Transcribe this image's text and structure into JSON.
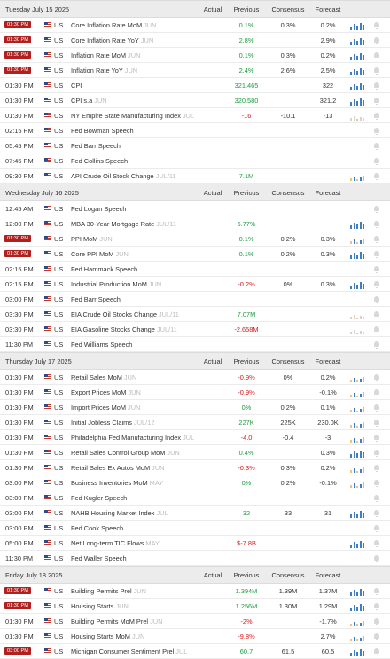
{
  "columns": {
    "actual": "Actual",
    "previous": "Previous",
    "consensus": "Consensus",
    "forecast": "Forecast"
  },
  "days": [
    {
      "date": "Tuesday July 15 2025",
      "rows": [
        {
          "time": "01:30 PM",
          "hi": true,
          "country": "US",
          "event": "Core Inflation Rate MoM",
          "period": "JUN",
          "actual": "",
          "previous": "0.1%",
          "prev_color": "up",
          "consensus": "0.3%",
          "forecast": "0.2%",
          "spark": "bar"
        },
        {
          "time": "01:30 PM",
          "hi": true,
          "country": "US",
          "event": "Core Inflation Rate YoY",
          "period": "JUN",
          "actual": "",
          "previous": "2.8%",
          "prev_color": "up",
          "consensus": "",
          "forecast": "2.9%",
          "spark": "bar"
        },
        {
          "time": "01:30 PM",
          "hi": true,
          "country": "US",
          "event": "Inflation Rate MoM",
          "period": "JUN",
          "actual": "",
          "previous": "0.1%",
          "prev_color": "up",
          "consensus": "0.3%",
          "forecast": "0.2%",
          "spark": "bar"
        },
        {
          "time": "01:30 PM",
          "hi": true,
          "country": "US",
          "event": "Inflation Rate YoY",
          "period": "JUN",
          "actual": "",
          "previous": "2.4%",
          "prev_color": "up",
          "consensus": "2.6%",
          "forecast": "2.5%",
          "spark": "bar"
        },
        {
          "time": "01:30 PM",
          "hi": false,
          "country": "US",
          "event": "CPI",
          "period": "",
          "actual": "",
          "previous": "321.465",
          "prev_color": "up",
          "consensus": "",
          "forecast": "322",
          "spark": "bar"
        },
        {
          "time": "01:30 PM",
          "hi": false,
          "country": "US",
          "event": "CPI s.a",
          "period": "JUN",
          "actual": "",
          "previous": "320.580",
          "prev_color": "up",
          "consensus": "",
          "forecast": "321.2",
          "spark": "bar"
        },
        {
          "time": "01:30 PM",
          "hi": false,
          "country": "US",
          "event": "NY Empire State Manufacturing Index",
          "period": "JUL",
          "actual": "",
          "previous": "-16",
          "prev_color": "down",
          "consensus": "-10.1",
          "forecast": "-13",
          "spark": "faint"
        },
        {
          "time": "02:15 PM",
          "hi": false,
          "country": "US",
          "event": "Fed Bowman Speech",
          "period": "",
          "actual": "",
          "previous": "",
          "prev_color": "",
          "consensus": "",
          "forecast": "",
          "spark": "none"
        },
        {
          "time": "05:45 PM",
          "hi": false,
          "country": "US",
          "event": "Fed Barr Speech",
          "period": "",
          "actual": "",
          "previous": "",
          "prev_color": "",
          "consensus": "",
          "forecast": "",
          "spark": "none"
        },
        {
          "time": "07:45 PM",
          "hi": false,
          "country": "US",
          "event": "Fed Collins Speech",
          "period": "",
          "actual": "",
          "previous": "",
          "prev_color": "",
          "consensus": "",
          "forecast": "",
          "spark": "none"
        },
        {
          "time": "09:30 PM",
          "hi": false,
          "country": "US",
          "event": "API Crude Oil Stock Change",
          "period": "JUL/11",
          "actual": "",
          "previous": "7.1M",
          "prev_color": "up",
          "consensus": "",
          "forecast": "",
          "spark": "mixed"
        }
      ]
    },
    {
      "date": "Wednesday July 16 2025",
      "rows": [
        {
          "time": "12:45 AM",
          "hi": false,
          "country": "US",
          "event": "Fed Logan Speech",
          "period": "",
          "actual": "",
          "previous": "",
          "prev_color": "",
          "consensus": "",
          "forecast": "",
          "spark": "none"
        },
        {
          "time": "12:00 PM",
          "hi": false,
          "country": "US",
          "event": "MBA 30-Year Mortgage Rate",
          "period": "JUL/11",
          "actual": "",
          "previous": "6.77%",
          "prev_color": "up",
          "consensus": "",
          "forecast": "",
          "spark": "bar"
        },
        {
          "time": "01:30 PM",
          "hi": true,
          "country": "US",
          "event": "PPI MoM",
          "period": "JUN",
          "actual": "",
          "previous": "0.1%",
          "prev_color": "up",
          "consensus": "0.2%",
          "forecast": "0.3%",
          "spark": "mixed"
        },
        {
          "time": "01:30 PM",
          "hi": true,
          "country": "US",
          "event": "Core PPI MoM",
          "period": "JUN",
          "actual": "",
          "previous": "0.1%",
          "prev_color": "up",
          "consensus": "0.2%",
          "forecast": "0.3%",
          "spark": "bar"
        },
        {
          "time": "02:15 PM",
          "hi": false,
          "country": "US",
          "event": "Fed Hammack Speech",
          "period": "",
          "actual": "",
          "previous": "",
          "prev_color": "",
          "consensus": "",
          "forecast": "",
          "spark": "none"
        },
        {
          "time": "02:15 PM",
          "hi": false,
          "country": "US",
          "event": "Industrial Production MoM",
          "period": "JUN",
          "actual": "",
          "previous": "-0.2%",
          "prev_color": "down",
          "consensus": "0%",
          "forecast": "0.3%",
          "spark": "bar"
        },
        {
          "time": "03:00 PM",
          "hi": false,
          "country": "US",
          "event": "Fed Barr Speech",
          "period": "",
          "actual": "",
          "previous": "",
          "prev_color": "",
          "consensus": "",
          "forecast": "",
          "spark": "none"
        },
        {
          "time": "03:30 PM",
          "hi": false,
          "country": "US",
          "event": "EIA Crude Oil Stocks Change",
          "period": "JUL/11",
          "actual": "",
          "previous": "7.07M",
          "prev_color": "up",
          "consensus": "",
          "forecast": "",
          "spark": "faint"
        },
        {
          "time": "03:30 PM",
          "hi": false,
          "country": "US",
          "event": "EIA Gasoline Stocks Change",
          "period": "JUL/11",
          "actual": "",
          "previous": "-2.658M",
          "prev_color": "down",
          "consensus": "",
          "forecast": "",
          "spark": "faint"
        },
        {
          "time": "11:30 PM",
          "hi": false,
          "country": "US",
          "event": "Fed Williams Speech",
          "period": "",
          "actual": "",
          "previous": "",
          "prev_color": "",
          "consensus": "",
          "forecast": "",
          "spark": "none"
        }
      ]
    },
    {
      "date": "Thursday July 17 2025",
      "rows": [
        {
          "time": "01:30 PM",
          "hi": false,
          "country": "US",
          "event": "Retail Sales MoM",
          "period": "JUN",
          "actual": "",
          "previous": "-0.9%",
          "prev_color": "down",
          "consensus": "0%",
          "forecast": "0.2%",
          "spark": "mixed"
        },
        {
          "time": "01:30 PM",
          "hi": false,
          "country": "US",
          "event": "Export Prices MoM",
          "period": "JUN",
          "actual": "",
          "previous": "-0.9%",
          "prev_color": "down",
          "consensus": "",
          "forecast": "-0.1%",
          "spark": "mixed"
        },
        {
          "time": "01:30 PM",
          "hi": false,
          "country": "US",
          "event": "Import Prices MoM",
          "period": "JUN",
          "actual": "",
          "previous": "0%",
          "prev_color": "up",
          "consensus": "0.2%",
          "forecast": "0.1%",
          "spark": "mixed"
        },
        {
          "time": "01:30 PM",
          "hi": false,
          "country": "US",
          "event": "Initial Jobless Claims",
          "period": "JUL/12",
          "actual": "",
          "previous": "227K",
          "prev_color": "up",
          "consensus": "225K",
          "forecast": "230.0K",
          "spark": "mixed"
        },
        {
          "time": "01:30 PM",
          "hi": false,
          "country": "US",
          "event": "Philadelphia Fed Manufacturing Index",
          "period": "JUL",
          "actual": "",
          "previous": "-4.0",
          "prev_color": "down",
          "consensus": "-0.4",
          "forecast": "-3",
          "spark": "mixed"
        },
        {
          "time": "01:30 PM",
          "hi": false,
          "country": "US",
          "event": "Retail Sales Control Group MoM",
          "period": "JUN",
          "actual": "",
          "previous": "0.4%",
          "prev_color": "up",
          "consensus": "",
          "forecast": "0.3%",
          "spark": "bar"
        },
        {
          "time": "01:30 PM",
          "hi": false,
          "country": "US",
          "event": "Retail Sales Ex Autos MoM",
          "period": "JUN",
          "actual": "",
          "previous": "-0.3%",
          "prev_color": "down",
          "consensus": "0.3%",
          "forecast": "0.2%",
          "spark": "mixed"
        },
        {
          "time": "03:00 PM",
          "hi": false,
          "country": "US",
          "event": "Business Inventories MoM",
          "period": "MAY",
          "actual": "",
          "previous": "0%",
          "prev_color": "up",
          "consensus": "0.2%",
          "forecast": "-0.1%",
          "spark": "mixed"
        },
        {
          "time": "03:00 PM",
          "hi": false,
          "country": "US",
          "event": "Fed Kugler Speech",
          "period": "",
          "actual": "",
          "previous": "",
          "prev_color": "",
          "consensus": "",
          "forecast": "",
          "spark": "none"
        },
        {
          "time": "03:00 PM",
          "hi": false,
          "country": "US",
          "event": "NAHB Housing Market Index",
          "period": "JUL",
          "actual": "",
          "previous": "32",
          "prev_color": "up",
          "consensus": "33",
          "forecast": "31",
          "spark": "bar"
        },
        {
          "time": "03:00 PM",
          "hi": false,
          "country": "US",
          "event": "Fed Cook Speech",
          "period": "",
          "actual": "",
          "previous": "",
          "prev_color": "",
          "consensus": "",
          "forecast": "",
          "spark": "none"
        },
        {
          "time": "05:00 PM",
          "hi": false,
          "country": "US",
          "event": "Net Long-term TIC Flows",
          "period": "MAY",
          "actual": "",
          "previous": "$-7.8B",
          "prev_color": "down",
          "consensus": "",
          "forecast": "",
          "spark": "bar"
        },
        {
          "time": "11:30 PM",
          "hi": false,
          "country": "US",
          "event": "Fed Waller Speech",
          "period": "",
          "actual": "",
          "previous": "",
          "prev_color": "",
          "consensus": "",
          "forecast": "",
          "spark": "none"
        }
      ]
    },
    {
      "date": "Friday July 18 2025",
      "rows": [
        {
          "time": "01:30 PM",
          "hi": true,
          "country": "US",
          "event": "Building Permits Prel",
          "period": "JUN",
          "actual": "",
          "previous": "1.394M",
          "prev_color": "up",
          "consensus": "1.39M",
          "forecast": "1.37M",
          "spark": "bar"
        },
        {
          "time": "01:30 PM",
          "hi": true,
          "country": "US",
          "event": "Housing Starts",
          "period": "JUN",
          "actual": "",
          "previous": "1.256M",
          "prev_color": "up",
          "consensus": "1.30M",
          "forecast": "1.29M",
          "spark": "bar"
        },
        {
          "time": "01:30 PM",
          "hi": false,
          "country": "US",
          "event": "Building Permits MoM Prel",
          "period": "JUN",
          "actual": "",
          "previous": "-2%",
          "prev_color": "down",
          "consensus": "",
          "forecast": "-1.7%",
          "spark": "mixed"
        },
        {
          "time": "01:30 PM",
          "hi": false,
          "country": "US",
          "event": "Housing Starts MoM",
          "period": "JUN",
          "actual": "",
          "previous": "-9.8%",
          "prev_color": "down",
          "consensus": "",
          "forecast": "2.7%",
          "spark": "mixed"
        },
        {
          "time": "03:00 PM",
          "hi": true,
          "country": "US",
          "event": "Michigan Consumer Sentiment Prel",
          "period": "JUL",
          "actual": "",
          "previous": "60.7",
          "prev_color": "up",
          "consensus": "61.5",
          "forecast": "60.5",
          "spark": "bar"
        }
      ]
    }
  ]
}
